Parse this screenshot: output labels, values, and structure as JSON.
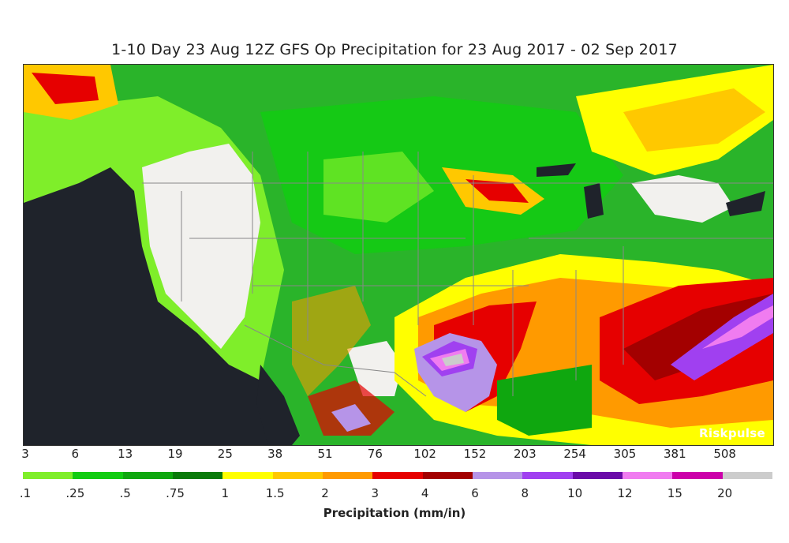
{
  "title": "1-10 Day 23 Aug 12Z GFS Op Precipitation for 23 Aug 2017 - 02 Sep 2017",
  "brand": "Riskpulse",
  "colorbar": {
    "title": "Precipitation (mm/in)",
    "mm_labels": [
      "3",
      "6",
      "13",
      "19",
      "25",
      "38",
      "51",
      "76",
      "102",
      "152",
      "203",
      "254",
      "305",
      "381",
      "508"
    ],
    "in_labels": [
      ".1",
      ".25",
      ".5",
      ".75",
      "1",
      "1.5",
      "2",
      "3",
      "4",
      "6",
      "8",
      "10",
      "12",
      "15",
      "20"
    ],
    "colors": [
      "#7fee2a",
      "#12cc12",
      "#0fa70f",
      "#0a7a0a",
      "#ffff00",
      "#ffc800",
      "#ff9a00",
      "#e60000",
      "#a30000",
      "#b694e8",
      "#a040f0",
      "#6a0aa8",
      "#f07cf0",
      "#cc00aa",
      "#cccccc"
    ]
  },
  "map": {
    "ocean_color": "#1f232b",
    "dry_color": "#f2f1ee",
    "border_color": "#888888"
  }
}
